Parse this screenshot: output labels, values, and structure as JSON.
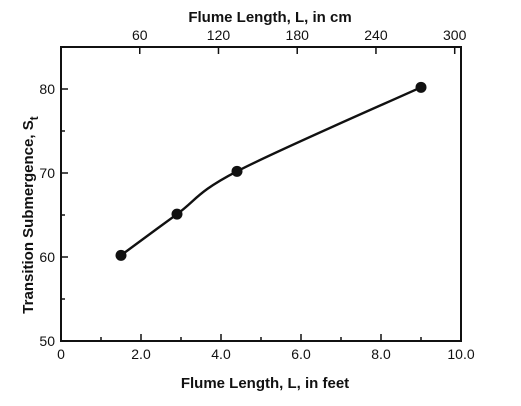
{
  "chart_data": {
    "type": "line",
    "title": "",
    "xlabel": "Flume Length, L, in feet",
    "x2label": "Flume Length, L, in cm",
    "ylabel_main": "Transition Submergence, S",
    "ylabel_sub": "t",
    "xlim": [
      0,
      10
    ],
    "ylim": [
      50,
      85
    ],
    "x_ticks": [
      0,
      2,
      4,
      6,
      8,
      10
    ],
    "x_tick_labels": [
      "0",
      "2.0",
      "4.0",
      "6.0",
      "8.0",
      "10.0"
    ],
    "x2_ticks_cm": [
      60,
      120,
      180,
      240,
      300
    ],
    "x2_tick_labels": [
      "60",
      "120",
      "180",
      "240",
      "300"
    ],
    "y_ticks": [
      50,
      60,
      70,
      80
    ],
    "y_tick_labels": [
      "50",
      "60",
      "70",
      "80"
    ],
    "grid": false,
    "series": [
      {
        "points_x": [
          1.5,
          2.9,
          4.4,
          9.0
        ],
        "points_y": [
          60.2,
          65.1,
          70.2,
          80.2
        ]
      }
    ]
  }
}
